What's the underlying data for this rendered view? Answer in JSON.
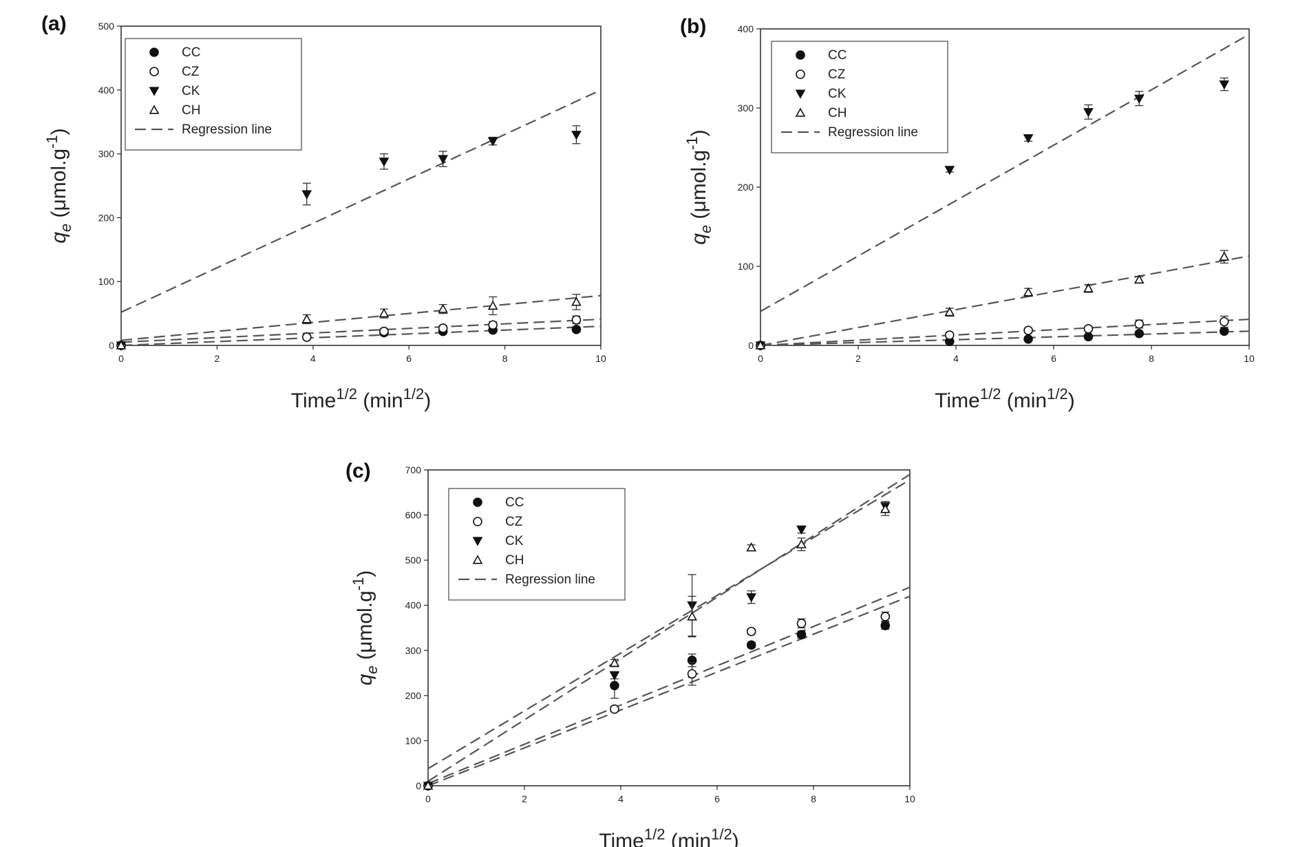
{
  "chart_data": [
    {
      "type": "scatter",
      "panel_label": "(a)",
      "xlabel": "Time",
      "xlabel_sup": "1/2",
      "xunit": "min",
      "xunit_sup": "1/2",
      "ylabel": "q",
      "ylabel_sub": "e",
      "yunit": "μmol.g",
      "yunit_sup": "-1",
      "xlim": [
        0,
        10
      ],
      "ylim": [
        0,
        500
      ],
      "xticks": [
        "0",
        "2",
        "4",
        "6",
        "8",
        "10"
      ],
      "yticks": [
        "0",
        "100",
        "200",
        "300",
        "400",
        "500"
      ],
      "legend_placement": "top-left",
      "legend": [
        "CC",
        "CZ",
        "CK",
        "CH",
        "Regression line"
      ],
      "series": [
        {
          "name": "CC",
          "marker": "filled-circle",
          "x": [
            0,
            3.87,
            5.48,
            6.71,
            7.75,
            9.49
          ],
          "y": [
            0,
            13,
            20,
            22,
            24,
            25
          ],
          "err": [
            0,
            2,
            3,
            3,
            3,
            4
          ],
          "fit": [
            0,
            3
          ]
        },
        {
          "name": "CZ",
          "marker": "open-circle",
          "x": [
            0,
            3.87,
            5.48,
            6.71,
            7.75,
            9.49
          ],
          "y": [
            0,
            13,
            22,
            27,
            32,
            40
          ],
          "err": [
            0,
            2,
            4,
            4,
            5,
            6
          ],
          "fit": [
            5,
            3.6
          ]
        },
        {
          "name": "CK",
          "marker": "filled-triangle-down",
          "x": [
            0,
            3.87,
            5.48,
            6.71,
            7.75,
            9.49
          ],
          "y": [
            0,
            237,
            288,
            292,
            320,
            330
          ],
          "err": [
            0,
            17,
            12,
            12,
            6,
            14
          ],
          "fit": [
            52,
            34.8
          ]
        },
        {
          "name": "CH",
          "marker": "open-triangle-up",
          "x": [
            0,
            3.87,
            5.48,
            6.71,
            7.75,
            9.49
          ],
          "y": [
            0,
            41,
            50,
            57,
            62,
            68
          ],
          "err": [
            0,
            7,
            7,
            7,
            14,
            12
          ],
          "fit": [
            8,
            7
          ]
        }
      ]
    },
    {
      "type": "scatter",
      "panel_label": "(b)",
      "xlabel": "Time",
      "xlabel_sup": "1/2",
      "xunit": "min",
      "xunit_sup": "1/2",
      "ylabel": "q",
      "ylabel_sub": "e",
      "yunit": "μmol.g",
      "yunit_sup": "-1",
      "xlim": [
        0,
        10
      ],
      "ylim": [
        0,
        400
      ],
      "xticks": [
        "0",
        "2",
        "4",
        "6",
        "8",
        "10"
      ],
      "yticks": [
        "0",
        "100",
        "200",
        "300",
        "400"
      ],
      "legend_placement": "top-left",
      "legend": [
        "CC",
        "CZ",
        "CK",
        "CH",
        "Regression line"
      ],
      "series": [
        {
          "name": "CC",
          "marker": "filled-circle",
          "x": [
            0,
            3.87,
            5.48,
            6.71,
            7.75,
            9.49
          ],
          "y": [
            0,
            5,
            8,
            11,
            15,
            18
          ],
          "err": [
            0,
            1,
            1,
            2,
            2,
            3
          ],
          "fit": [
            0,
            1.8
          ]
        },
        {
          "name": "CZ",
          "marker": "open-circle",
          "x": [
            0,
            3.87,
            5.48,
            6.71,
            7.75,
            9.49
          ],
          "y": [
            0,
            13,
            19,
            21,
            27,
            30
          ],
          "err": [
            0,
            2,
            3,
            3,
            5,
            7
          ],
          "fit": [
            0,
            3.3
          ]
        },
        {
          "name": "CK",
          "marker": "filled-triangle-down",
          "x": [
            0,
            3.87,
            5.48,
            6.71,
            7.75,
            9.49
          ],
          "y": [
            0,
            222,
            262,
            295,
            312,
            330
          ],
          "err": [
            0,
            3,
            4,
            9,
            9,
            8
          ],
          "fit": [
            43,
            35
          ]
        },
        {
          "name": "CH",
          "marker": "open-triangle-up",
          "x": [
            0,
            3.87,
            5.48,
            6.71,
            7.75,
            9.49
          ],
          "y": [
            0,
            42,
            67,
            72,
            83,
            112
          ],
          "err": [
            0,
            5,
            5,
            5,
            4,
            8
          ],
          "fit": [
            0,
            11.3
          ]
        }
      ]
    },
    {
      "type": "scatter",
      "panel_label": "(c)",
      "xlabel": "Time",
      "xlabel_sup": "1/2",
      "xunit": "min",
      "xunit_sup": "1/2",
      "ylabel": "q",
      "ylabel_sub": "e",
      "yunit": "μmol.g",
      "yunit_sup": "-1",
      "xlim": [
        0,
        10
      ],
      "ylim": [
        0,
        700
      ],
      "xticks": [
        "0",
        "2",
        "4",
        "6",
        "8",
        "10"
      ],
      "yticks": [
        "0",
        "100",
        "200",
        "300",
        "400",
        "500",
        "600",
        "700"
      ],
      "legend_placement": "top-left",
      "legend": [
        "CC",
        "CZ",
        "CK",
        "CH",
        "Regression line"
      ],
      "series": [
        {
          "name": "CC",
          "marker": "filled-circle",
          "x": [
            0,
            3.87,
            5.48,
            6.71,
            7.75,
            9.49
          ],
          "y": [
            0,
            222,
            278,
            312,
            335,
            355
          ],
          "err": [
            0,
            28,
            14,
            6,
            8,
            8
          ],
          "fit": [
            0,
            42
          ]
        },
        {
          "name": "CZ",
          "marker": "open-circle",
          "x": [
            0,
            3.87,
            5.48,
            6.71,
            7.75,
            9.49
          ],
          "y": [
            0,
            170,
            248,
            342,
            360,
            375
          ],
          "err": [
            0,
            6,
            25,
            5,
            10,
            10
          ],
          "fit": [
            5,
            43.5
          ]
        },
        {
          "name": "CK",
          "marker": "filled-triangle-down",
          "x": [
            0,
            3.87,
            5.48,
            6.71,
            7.75,
            9.49
          ],
          "y": [
            0,
            245,
            400,
            418,
            568,
            620
          ],
          "err": [
            0,
            8,
            68,
            14,
            8,
            10
          ],
          "fit": [
            10,
            68
          ]
        },
        {
          "name": "CH",
          "marker": "open-triangle-up",
          "x": [
            0,
            3.87,
            5.48,
            6.71,
            7.75,
            9.49
          ],
          "y": [
            0,
            272,
            375,
            528,
            535,
            613
          ],
          "err": [
            0,
            8,
            45,
            6,
            14,
            14
          ],
          "fit": [
            38,
            64
          ]
        }
      ]
    }
  ]
}
